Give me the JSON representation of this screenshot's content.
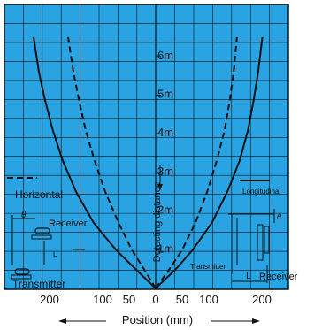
{
  "chart_data": {
    "type": "line",
    "xlabel": "Position (mm)",
    "ylabel": "Detecting distance",
    "x_tick_labels": [
      "200",
      "100",
      "50",
      "0",
      "50",
      "100",
      "200"
    ],
    "y_tick_labels": [
      "1m",
      "2m",
      "3m",
      "4m",
      "5m",
      "6m"
    ],
    "xlim_left": [
      250,
      0
    ],
    "xlim_right": [
      0,
      250
    ],
    "ylim": [
      0,
      6.5
    ],
    "grid": true,
    "background_color": "#2aa3e3",
    "legend": [
      {
        "label": "Horizontal",
        "style": "dashed"
      },
      {
        "label": "Longitudinal",
        "style": "solid"
      }
    ],
    "series": [
      {
        "name": "Horizontal",
        "style": "dashed",
        "left": [
          [
            0,
            0
          ],
          [
            22,
            0.5
          ],
          [
            45,
            1
          ],
          [
            70,
            1.7
          ],
          [
            95,
            2.5
          ],
          [
            115,
            3.3
          ],
          [
            132,
            4.1
          ],
          [
            145,
            4.9
          ],
          [
            155,
            5.6
          ],
          [
            165,
            6.5
          ]
        ],
        "right": [
          [
            0,
            0
          ],
          [
            26,
            0.5
          ],
          [
            50,
            1
          ],
          [
            75,
            1.7
          ],
          [
            97,
            2.5
          ],
          [
            115,
            3.3
          ],
          [
            130,
            4.1
          ],
          [
            140,
            4.9
          ],
          [
            147,
            5.6
          ],
          [
            153,
            6.5
          ]
        ]
      },
      {
        "name": "Longitudinal",
        "style": "solid",
        "left": [
          [
            0,
            0
          ],
          [
            38,
            0.5
          ],
          [
            75,
            1
          ],
          [
            117,
            1.7
          ],
          [
            150,
            2.5
          ],
          [
            175,
            3.3
          ],
          [
            194,
            4.1
          ],
          [
            209,
            4.9
          ],
          [
            220,
            5.6
          ],
          [
            230,
            6.5
          ]
        ],
        "right": [
          [
            0,
            0
          ],
          [
            38,
            0.5
          ],
          [
            70,
            1
          ],
          [
            106,
            1.7
          ],
          [
            135,
            2.5
          ],
          [
            158,
            3.3
          ],
          [
            174,
            4.1
          ],
          [
            185,
            4.9
          ],
          [
            193,
            5.6
          ],
          [
            201,
            6.5
          ]
        ]
      }
    ],
    "diagram_labels": {
      "horizontal_theta": "θ",
      "horizontal_receiver": "Receiver",
      "horizontal_L": "L",
      "horizontal_transmitter": "Transmitter",
      "longitudinal_theta": "θ",
      "longitudinal_transmitter": "Transmitter",
      "longitudinal_L": "L",
      "longitudinal_receiver": "Receiver"
    }
  }
}
